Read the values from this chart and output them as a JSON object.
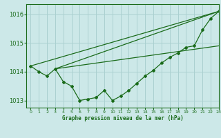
{
  "xlabel": "Graphe pression niveau de la mer (hPa)",
  "xlim": [
    -0.5,
    23
  ],
  "ylim": [
    1012.75,
    1016.35
  ],
  "yticks": [
    1013,
    1014,
    1015,
    1016
  ],
  "xticks": [
    0,
    1,
    2,
    3,
    4,
    5,
    6,
    7,
    8,
    9,
    10,
    11,
    12,
    13,
    14,
    15,
    16,
    17,
    18,
    19,
    20,
    21,
    22,
    23
  ],
  "background_color": "#cce8e8",
  "grid_color": "#aad0d0",
  "line_color": "#1a6b1a",
  "data_line": {
    "x": [
      0,
      1,
      2,
      3,
      4,
      5,
      6,
      7,
      8,
      9,
      10,
      11,
      12,
      13,
      14,
      15,
      16,
      17,
      18,
      19,
      20,
      21,
      22,
      23
    ],
    "y": [
      1014.2,
      1014.0,
      1013.85,
      1014.1,
      1013.65,
      1013.5,
      1013.0,
      1013.05,
      1013.1,
      1013.35,
      1013.0,
      1013.15,
      1013.35,
      1013.6,
      1013.85,
      1014.05,
      1014.3,
      1014.5,
      1014.65,
      1014.85,
      1014.9,
      1015.45,
      1015.85,
      1016.1
    ]
  },
  "straight_line1": {
    "x": [
      0,
      23
    ],
    "y": [
      1014.2,
      1016.1
    ]
  },
  "straight_line2": {
    "x": [
      3,
      23
    ],
    "y": [
      1014.1,
      1016.1
    ]
  },
  "straight_line3": {
    "x": [
      3,
      23
    ],
    "y": [
      1014.1,
      1014.9
    ]
  }
}
